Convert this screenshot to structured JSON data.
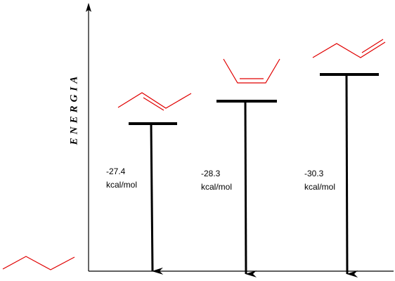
{
  "axis_label": "ENERGIA",
  "levels": [
    {
      "energy": -27.4,
      "unit": "kcal/mol"
    },
    {
      "energy": -28.3,
      "unit": "kcal/mol"
    },
    {
      "energy": -30.3,
      "unit": "kcal/mol"
    }
  ]
}
